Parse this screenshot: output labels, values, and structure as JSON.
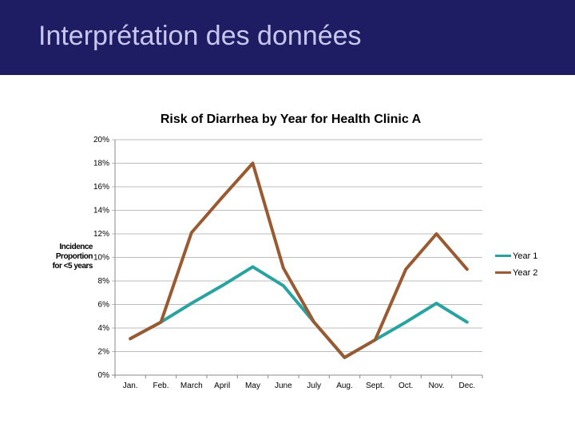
{
  "slide": {
    "title": "Interprétation des données"
  },
  "chart_data": {
    "type": "line",
    "title": "Risk of Diarrhea by Year for Health Clinic A",
    "ylabel": [
      "Incidence",
      "Proportion",
      "for <5 years"
    ],
    "xlabel": "",
    "categories": [
      "Jan.",
      "Feb.",
      "March",
      "April",
      "May",
      "June",
      "July",
      "Aug.",
      "Sept.",
      "Oct.",
      "Nov.",
      "Dec."
    ],
    "ylim": [
      0,
      20
    ],
    "yticks": [
      "0%",
      "2%",
      "4%",
      "6%",
      "8%",
      "10%",
      "12%",
      "14%",
      "16%",
      "18%",
      "20%"
    ],
    "grid": true,
    "legend_position": "right",
    "series": [
      {
        "name": "Year 1",
        "color": "#2aa3a0",
        "values": [
          3.1,
          4.5,
          6.1,
          7.6,
          9.2,
          7.6,
          4.5,
          1.5,
          3.0,
          4.5,
          6.1,
          4.5
        ]
      },
      {
        "name": "Year 2",
        "color": "#9a5a31",
        "values": [
          3.1,
          4.5,
          12.1,
          15.1,
          18.0,
          9.1,
          4.5,
          1.5,
          3.0,
          9.0,
          12.0,
          9.0
        ]
      }
    ]
  }
}
